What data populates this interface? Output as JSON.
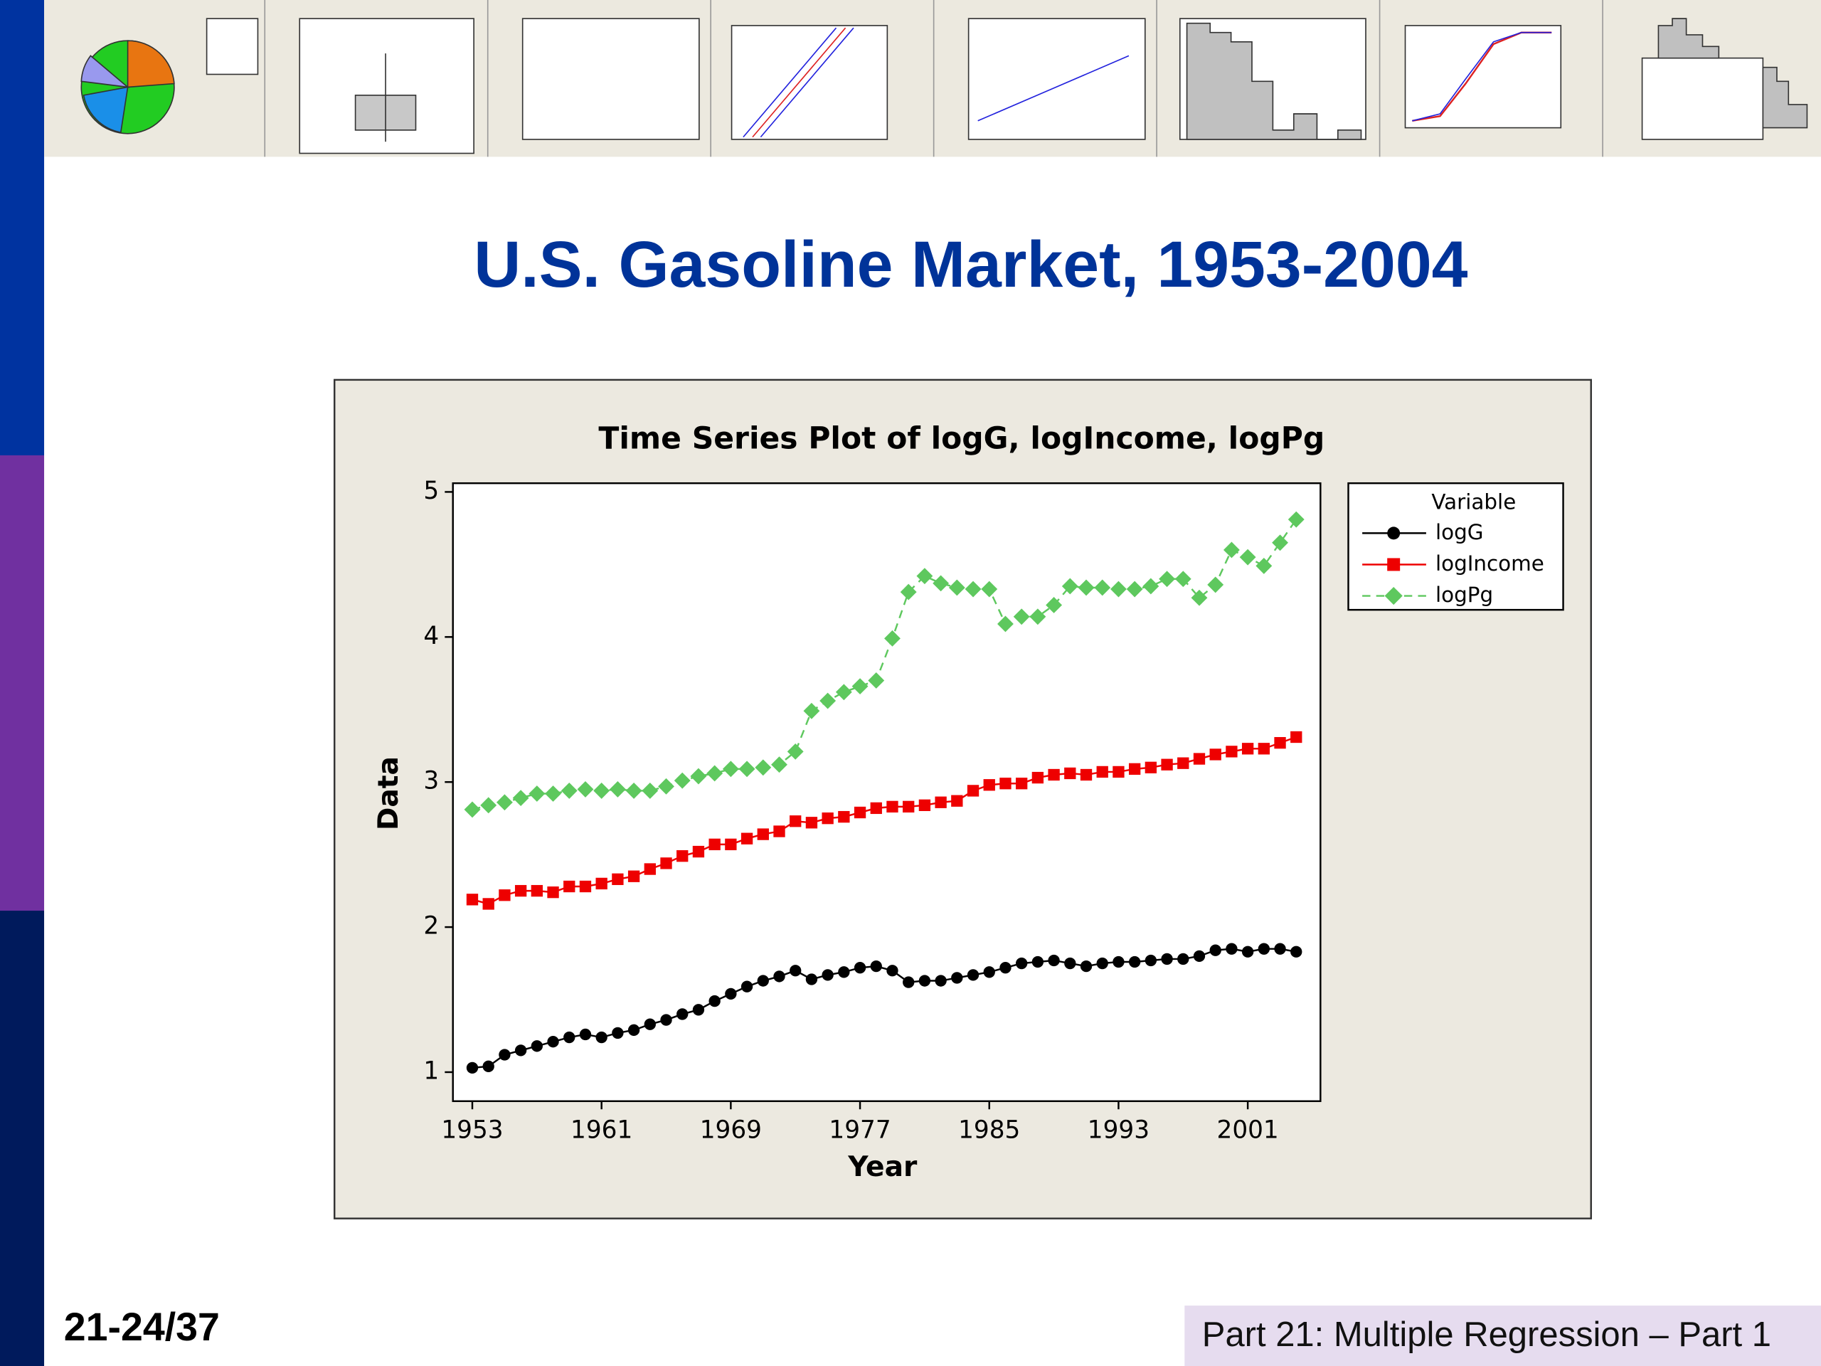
{
  "slide": {
    "title": "U.S. Gasoline Market, 1953-2004",
    "page": "21-24/37",
    "footer": "Part 21: Multiple Regression – Part 1"
  },
  "chart_data": {
    "type": "line",
    "title": "Time Series Plot of logG, logIncome, logPg",
    "x_label": "Year",
    "y_label": "Data",
    "legend_title": "Variable",
    "x": [
      1953,
      1954,
      1955,
      1956,
      1957,
      1958,
      1959,
      1960,
      1961,
      1962,
      1963,
      1964,
      1965,
      1966,
      1967,
      1968,
      1969,
      1970,
      1971,
      1972,
      1973,
      1974,
      1975,
      1976,
      1977,
      1978,
      1979,
      1980,
      1981,
      1982,
      1983,
      1984,
      1985,
      1986,
      1987,
      1988,
      1989,
      1990,
      1991,
      1992,
      1993,
      1994,
      1995,
      1996,
      1997,
      1998,
      1999,
      2000,
      2001,
      2002,
      2003,
      2004
    ],
    "series": [
      {
        "name": "logG",
        "color": "#000000",
        "marker": "circle",
        "dashed": false,
        "values": [
          1.03,
          1.04,
          1.12,
          1.15,
          1.18,
          1.21,
          1.24,
          1.26,
          1.24,
          1.27,
          1.29,
          1.33,
          1.36,
          1.4,
          1.43,
          1.49,
          1.54,
          1.59,
          1.63,
          1.66,
          1.7,
          1.64,
          1.67,
          1.69,
          1.72,
          1.73,
          1.7,
          1.62,
          1.63,
          1.63,
          1.65,
          1.67,
          1.69,
          1.72,
          1.75,
          1.76,
          1.77,
          1.75,
          1.73,
          1.75,
          1.76,
          1.76,
          1.77,
          1.78,
          1.78,
          1.8,
          1.84,
          1.85,
          1.83,
          1.85,
          1.85,
          1.83
        ]
      },
      {
        "name": "logIncome",
        "color": "#ee0000",
        "marker": "square",
        "dashed": false,
        "values": [
          2.19,
          2.16,
          2.22,
          2.25,
          2.25,
          2.24,
          2.28,
          2.28,
          2.3,
          2.33,
          2.35,
          2.4,
          2.44,
          2.49,
          2.52,
          2.57,
          2.57,
          2.61,
          2.64,
          2.66,
          2.73,
          2.72,
          2.75,
          2.76,
          2.79,
          2.82,
          2.83,
          2.83,
          2.84,
          2.86,
          2.87,
          2.94,
          2.98,
          2.99,
          2.99,
          3.03,
          3.05,
          3.06,
          3.05,
          3.07,
          3.07,
          3.09,
          3.1,
          3.12,
          3.13,
          3.16,
          3.19,
          3.21,
          3.23,
          3.23,
          3.27,
          3.31
        ]
      },
      {
        "name": "logPg",
        "color": "#5ec85e",
        "marker": "diamond",
        "dashed": true,
        "values": [
          2.81,
          2.84,
          2.86,
          2.89,
          2.92,
          2.92,
          2.94,
          2.95,
          2.94,
          2.95,
          2.94,
          2.94,
          2.97,
          3.01,
          3.04,
          3.06,
          3.09,
          3.09,
          3.1,
          3.12,
          3.21,
          3.49,
          3.56,
          3.62,
          3.66,
          3.7,
          3.99,
          4.31,
          4.42,
          4.37,
          4.34,
          4.33,
          4.33,
          4.09,
          4.14,
          4.14,
          4.22,
          4.35,
          4.34,
          4.34,
          4.33,
          4.33,
          4.35,
          4.4,
          4.4,
          4.27,
          4.36,
          4.6,
          4.55,
          4.49,
          4.65,
          4.81
        ]
      }
    ],
    "xlim": [
      1951.8,
      2005.5
    ],
    "xticks": [
      1953,
      1961,
      1969,
      1977,
      1985,
      1993,
      2001
    ],
    "ylim": [
      0.8,
      5.06
    ],
    "yticks": [
      1,
      2,
      3,
      4,
      5
    ],
    "grid": false,
    "legend": "top-right"
  }
}
